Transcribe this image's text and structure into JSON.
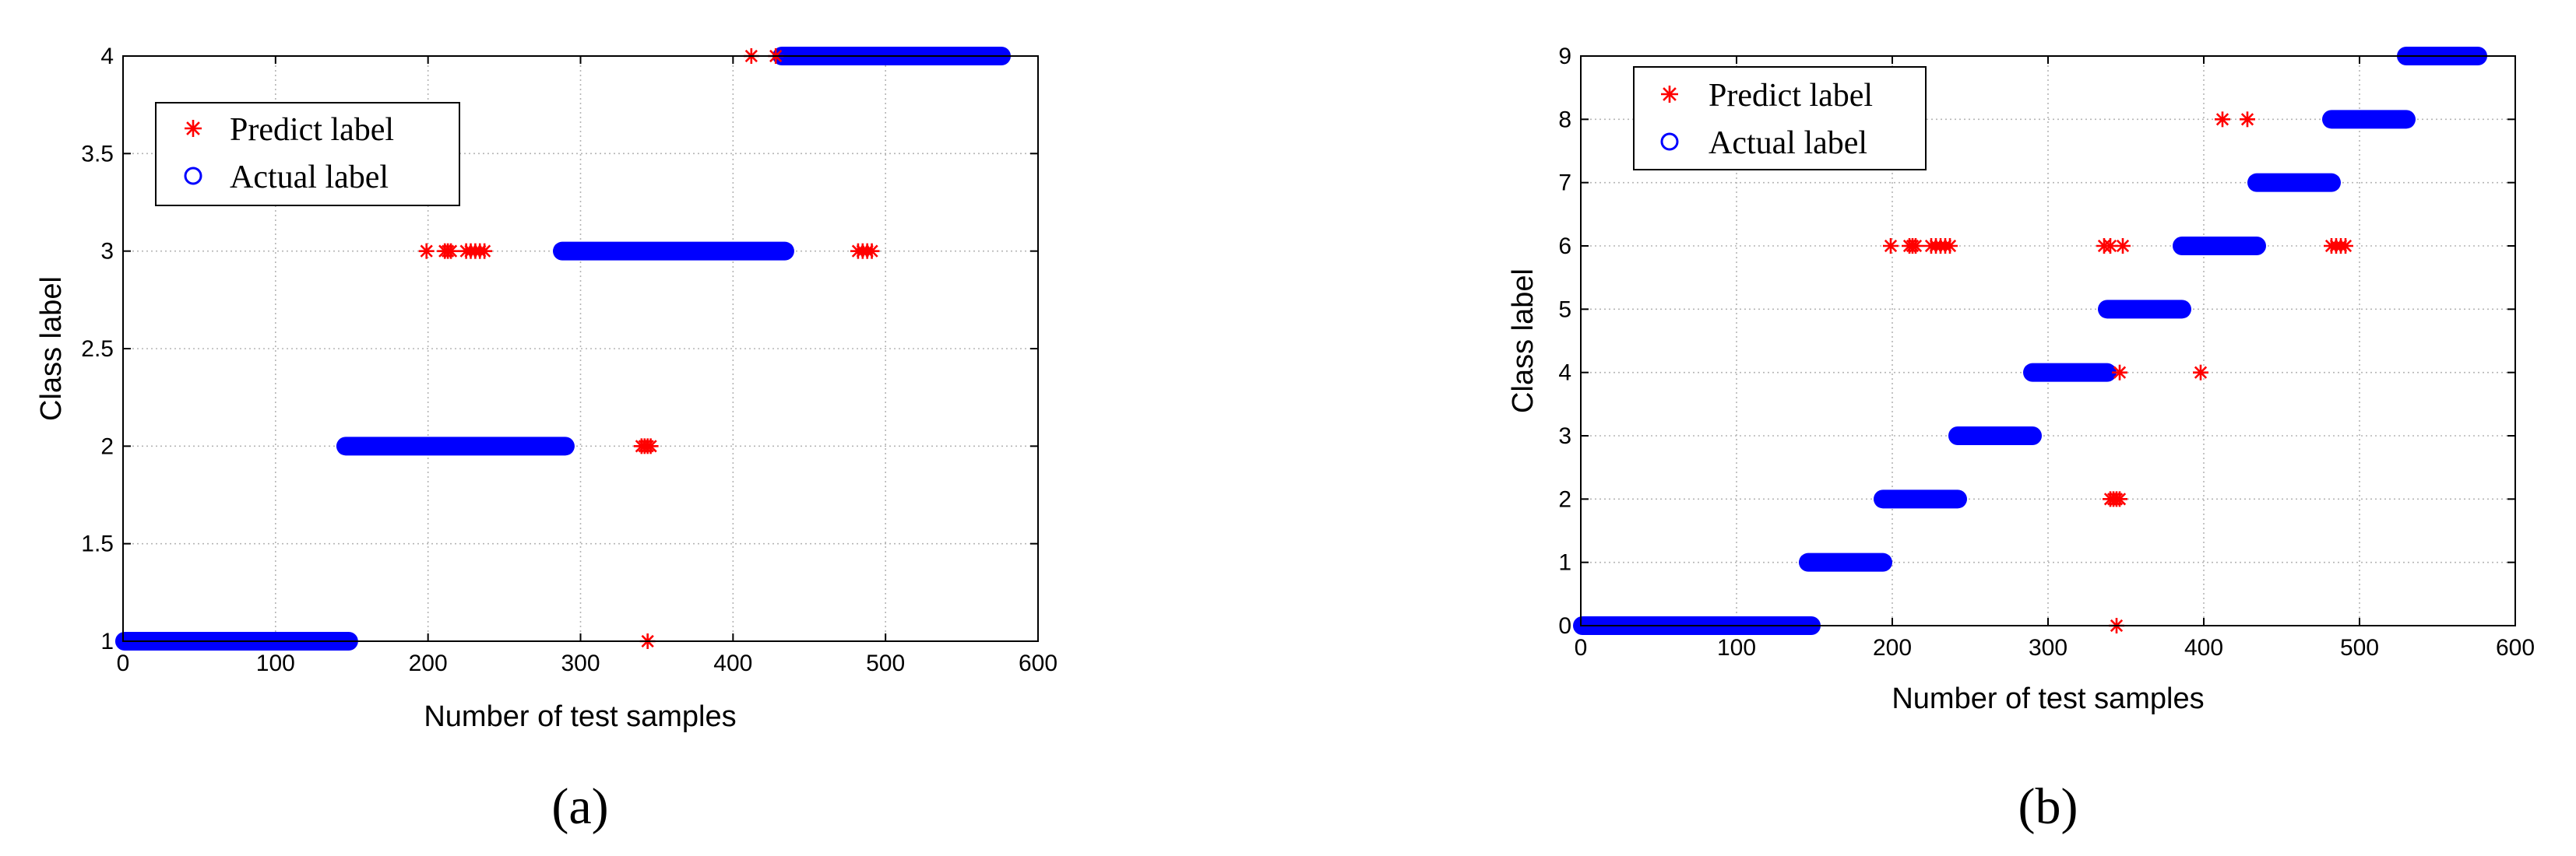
{
  "chart_data": [
    {
      "type": "scatter",
      "panel_label": "(a)",
      "xlabel": "Number of test samples",
      "ylabel": "Class label",
      "xlim": [
        0,
        600
      ],
      "ylim": [
        1,
        4
      ],
      "xticks": [
        0,
        100,
        200,
        300,
        400,
        500,
        600
      ],
      "yticks": [
        1,
        1.5,
        2,
        2.5,
        3,
        3.5,
        4
      ],
      "yticklabels": [
        "1",
        "1.5",
        "2",
        "2.5",
        "3",
        "3.5",
        "4"
      ],
      "grid": true,
      "legend_position": "top-left",
      "series": [
        {
          "name": "Actual label",
          "marker": "circle",
          "color": "#0000ff",
          "segments": [
            {
              "x_start": 1,
              "x_end": 148,
              "y": 1
            },
            {
              "x_start": 146,
              "x_end": 290,
              "y": 2
            },
            {
              "x_start": 288,
              "x_end": 434,
              "y": 3
            },
            {
              "x_start": 432,
              "x_end": 576,
              "y": 4
            }
          ]
        },
        {
          "name": "Predict label",
          "marker": "asterisk",
          "color": "#ff0000",
          "points": [
            {
              "x": 199,
              "y": 3
            },
            {
              "x": 211,
              "y": 3
            },
            {
              "x": 213,
              "y": 3
            },
            {
              "x": 215,
              "y": 3
            },
            {
              "x": 225,
              "y": 3
            },
            {
              "x": 228,
              "y": 3
            },
            {
              "x": 231,
              "y": 3
            },
            {
              "x": 234,
              "y": 3
            },
            {
              "x": 237,
              "y": 3
            },
            {
              "x": 340,
              "y": 2
            },
            {
              "x": 342,
              "y": 2
            },
            {
              "x": 344,
              "y": 2
            },
            {
              "x": 346,
              "y": 2
            },
            {
              "x": 344,
              "y": 1
            },
            {
              "x": 412,
              "y": 4
            },
            {
              "x": 428,
              "y": 4
            },
            {
              "x": 482,
              "y": 3
            },
            {
              "x": 485,
              "y": 3
            },
            {
              "x": 488,
              "y": 3
            },
            {
              "x": 491,
              "y": 3
            }
          ]
        }
      ]
    },
    {
      "type": "scatter",
      "panel_label": "(b)",
      "xlabel": "Number of test samples",
      "ylabel": "Class label",
      "xlim": [
        0,
        600
      ],
      "ylim": [
        0,
        9
      ],
      "xticks": [
        0,
        100,
        200,
        300,
        400,
        500,
        600
      ],
      "yticks": [
        0,
        1,
        2,
        3,
        4,
        5,
        6,
        7,
        8,
        9
      ],
      "yticklabels": [
        "0",
        "1",
        "2",
        "3",
        "4",
        "5",
        "6",
        "7",
        "8",
        "9"
      ],
      "grid": true,
      "legend_position": "top-left",
      "series": [
        {
          "name": "Actual label",
          "marker": "circle",
          "color": "#0000ff",
          "segments": [
            {
              "x_start": 1,
              "x_end": 148,
              "y": 0
            },
            {
              "x_start": 146,
              "x_end": 194,
              "y": 1
            },
            {
              "x_start": 194,
              "x_end": 242,
              "y": 2
            },
            {
              "x_start": 242,
              "x_end": 290,
              "y": 3
            },
            {
              "x_start": 290,
              "x_end": 338,
              "y": 4
            },
            {
              "x_start": 338,
              "x_end": 386,
              "y": 5
            },
            {
              "x_start": 386,
              "x_end": 434,
              "y": 6
            },
            {
              "x_start": 434,
              "x_end": 482,
              "y": 7
            },
            {
              "x_start": 482,
              "x_end": 530,
              "y": 8
            },
            {
              "x_start": 530,
              "x_end": 576,
              "y": 9
            }
          ]
        },
        {
          "name": "Predict label",
          "marker": "asterisk",
          "color": "#ff0000",
          "points": [
            {
              "x": 199,
              "y": 6
            },
            {
              "x": 211,
              "y": 6
            },
            {
              "x": 213,
              "y": 6
            },
            {
              "x": 215,
              "y": 6
            },
            {
              "x": 225,
              "y": 6
            },
            {
              "x": 228,
              "y": 6
            },
            {
              "x": 231,
              "y": 6
            },
            {
              "x": 234,
              "y": 6
            },
            {
              "x": 237,
              "y": 6
            },
            {
              "x": 336,
              "y": 6
            },
            {
              "x": 340,
              "y": 6
            },
            {
              "x": 348,
              "y": 6
            },
            {
              "x": 346,
              "y": 4
            },
            {
              "x": 398,
              "y": 4
            },
            {
              "x": 340,
              "y": 2
            },
            {
              "x": 342,
              "y": 2
            },
            {
              "x": 344,
              "y": 2
            },
            {
              "x": 346,
              "y": 2
            },
            {
              "x": 344,
              "y": 0
            },
            {
              "x": 412,
              "y": 8
            },
            {
              "x": 428,
              "y": 8
            },
            {
              "x": 482,
              "y": 6
            },
            {
              "x": 485,
              "y": 6
            },
            {
              "x": 488,
              "y": 6
            },
            {
              "x": 491,
              "y": 6
            }
          ]
        }
      ]
    }
  ]
}
